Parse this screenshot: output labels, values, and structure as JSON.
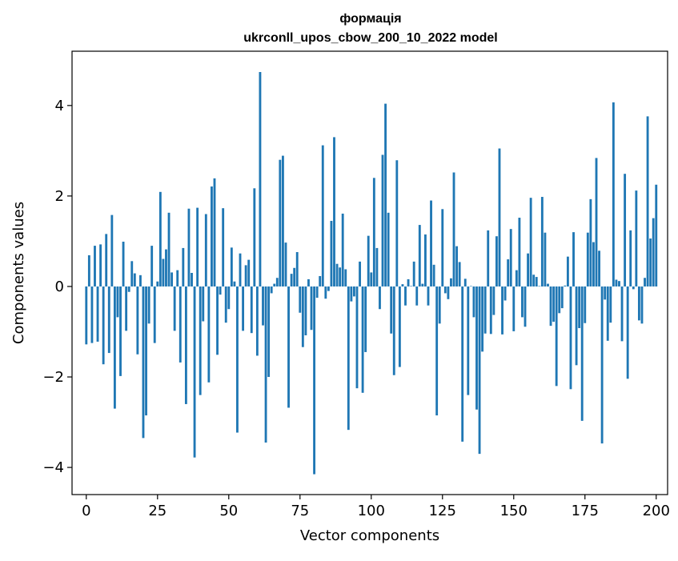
{
  "chart_data": {
    "type": "bar",
    "title_line1": "формація",
    "title_line2": "ukrconll_upos_cbow_200_10_2022 model",
    "xlabel": "Vector components",
    "ylabel": "Components values",
    "xlim": [
      -5,
      204
    ],
    "ylim": [
      -4.6,
      5.2
    ],
    "xticks": [
      0,
      25,
      50,
      75,
      100,
      125,
      150,
      175,
      200
    ],
    "yticks": [
      -4,
      -2,
      0,
      2,
      4
    ],
    "ytick_labels": [
      "−4",
      "−2",
      "0",
      "2",
      "4"
    ],
    "grid": false,
    "bar_color": "#1f77b4",
    "values": [
      -1.28,
      0.69,
      -1.25,
      0.9,
      -1.22,
      0.93,
      -1.72,
      1.16,
      -1.47,
      1.58,
      -2.7,
      -0.68,
      -1.98,
      0.99,
      -0.98,
      -0.12,
      0.56,
      0.29,
      -1.5,
      0.25,
      -3.35,
      -2.85,
      -0.82,
      0.9,
      -1.25,
      0.11,
      2.09,
      0.61,
      0.82,
      1.63,
      0.31,
      -0.98,
      0.36,
      -1.68,
      0.85,
      -2.6,
      1.72,
      0.3,
      -3.78,
      1.74,
      -2.4,
      -0.77,
      1.6,
      -2.12,
      2.21,
      2.39,
      -1.51,
      -0.18,
      1.73,
      -0.8,
      -0.5,
      0.86,
      0.11,
      -3.23,
      0.73,
      -0.98,
      0.47,
      0.59,
      -1.03,
      2.17,
      -1.53,
      4.74,
      -0.86,
      -3.45,
      -2.0,
      -0.15,
      0.06,
      0.19,
      2.8,
      2.89,
      0.97,
      -2.68,
      0.28,
      0.41,
      0.76,
      -0.58,
      -1.34,
      -1.08,
      0.16,
      -0.96,
      -4.15,
      -0.25,
      0.23,
      3.12,
      -0.27,
      -0.1,
      1.45,
      3.3,
      0.5,
      0.42,
      1.61,
      0.38,
      -3.17,
      -0.33,
      -0.22,
      -2.25,
      0.55,
      -2.35,
      -1.45,
      1.12,
      0.31,
      2.4,
      0.85,
      -0.5,
      2.91,
      4.04,
      1.63,
      -1.04,
      -1.96,
      2.79,
      -1.78,
      0.05,
      -0.42,
      0.16,
      0.01,
      0.55,
      -0.42,
      1.36,
      0.06,
      1.15,
      -0.42,
      1.9,
      0.48,
      -2.85,
      -0.82,
      1.71,
      -0.15,
      -0.28,
      0.18,
      2.52,
      0.89,
      0.54,
      -3.43,
      0.17,
      -2.4,
      0.01,
      -0.68,
      -2.72,
      -3.7,
      -1.44,
      -1.04,
      1.24,
      -1.05,
      -0.63,
      1.11,
      3.05,
      -1.06,
      -0.31,
      0.6,
      1.27,
      -0.99,
      0.36,
      1.52,
      -0.68,
      -0.89,
      0.73,
      1.96,
      0.26,
      0.21,
      0.01,
      1.98,
      1.19,
      0.06,
      -0.87,
      -0.78,
      -2.2,
      -0.59,
      -0.48,
      0.02,
      0.66,
      -2.27,
      1.2,
      -1.74,
      -0.92,
      -2.97,
      -0.81,
      1.19,
      1.93,
      0.98,
      2.84,
      0.79,
      -3.47,
      -0.29,
      -1.2,
      -0.8,
      4.07,
      0.15,
      0.12,
      -1.21,
      2.49,
      -2.04,
      1.24,
      -0.06,
      2.12,
      -0.75,
      -0.82,
      0.19,
      3.76,
      1.06,
      1.51,
      2.25
    ]
  }
}
